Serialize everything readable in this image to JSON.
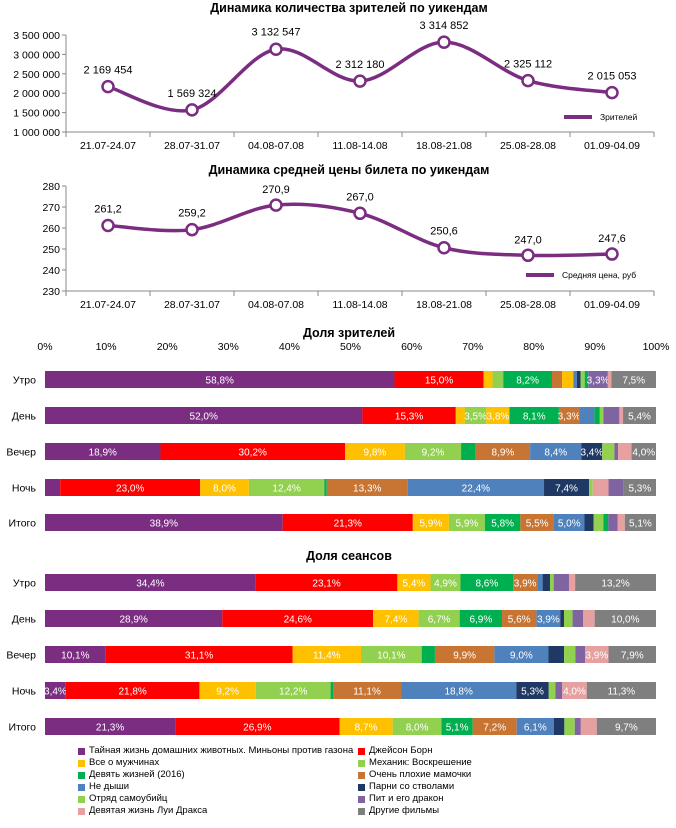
{
  "chart_data": [
    {
      "type": "line",
      "title": "Динамика количества зрителей по уикендам",
      "categories": [
        "21.07-24.07",
        "28.07-31.07",
        "04.08-07.08",
        "11.08-14.08",
        "18.08-21.08",
        "25.08-28.08",
        "01.09-04.09"
      ],
      "series": [
        {
          "name": "Зрителей",
          "values": [
            2169454,
            1569324,
            3132547,
            2312180,
            3314852,
            2325112,
            2015053
          ]
        }
      ],
      "value_labels": [
        "2 169 454",
        "1 569 324",
        "3 132 547",
        "2 312 180",
        "3 314 852",
        "2 325 112",
        "2 015 053"
      ],
      "yticks": [
        "3 500 000",
        "3 000 000",
        "2 500 000",
        "2 000 000",
        "1 500 000",
        "1 000 000"
      ],
      "ylim": [
        1000000,
        3500000
      ],
      "legend": "Зрителей",
      "color": "#7b2d81"
    },
    {
      "type": "line",
      "title": "Динамика средней цены билета по уикендам",
      "categories": [
        "21.07-24.07",
        "28.07-31.07",
        "04.08-07.08",
        "11.08-14.08",
        "18.08-21.08",
        "25.08-28.08",
        "01.09-04.09"
      ],
      "series": [
        {
          "name": "Средняя цена, руб",
          "values": [
            261.2,
            259.2,
            270.9,
            267.0,
            250.6,
            247.0,
            247.6
          ]
        }
      ],
      "value_labels": [
        "261,2",
        "259,2",
        "270,9",
        "267,0",
        "250,6",
        "247,0",
        "247,6"
      ],
      "yticks": [
        "280",
        "270",
        "260",
        "250",
        "240",
        "230"
      ],
      "ylim": [
        230,
        280
      ],
      "legend": "Средняя цена, руб",
      "color": "#7b2d81"
    },
    {
      "type": "bar",
      "orientation": "horizontal-stacked-100",
      "title": "Доля зрителей",
      "xticks": [
        "0%",
        "10%",
        "20%",
        "30%",
        "40%",
        "50%",
        "60%",
        "70%",
        "80%",
        "90%",
        "100%"
      ],
      "categories": [
        "Утро",
        "День",
        "Вечер",
        "Ночь",
        "Итого"
      ],
      "values": [
        [
          58.8,
          15.0,
          1.5,
          1.8,
          8.2,
          1.7,
          1.9,
          0.6,
          0.6,
          0.7,
          0.6,
          3.3,
          0.6,
          7.5
        ],
        [
          52.0,
          15.3,
          1.5,
          3.5,
          3.8,
          8.1,
          3.3,
          2.5,
          0.9,
          0.6,
          2.6,
          0.6,
          5.4
        ],
        [
          18.9,
          30.2,
          9.8,
          9.2,
          2.4,
          8.9,
          8.4,
          3.4,
          2.0,
          0.6,
          2.2,
          4.0
        ],
        [
          2.5,
          23.0,
          8.0,
          12.4,
          0.4,
          13.3,
          22.4,
          7.4,
          0.6,
          2.6,
          2.5,
          5.3
        ],
        [
          38.9,
          21.3,
          5.9,
          5.9,
          5.8,
          5.5,
          5.0,
          1.5,
          1.6,
          0.8,
          1.5,
          1.2,
          5.1
        ]
      ],
      "colors": [
        [
          "#7b2d81",
          "#ff0000",
          "#ffc000",
          "#92d050",
          "#00b050",
          "#c87533",
          "#ffc000",
          "#4f81bd",
          "#1f3864",
          "#92d050",
          "#00b050",
          "#8064a2",
          "#e6a0a0",
          "#7f7f7f"
        ],
        [
          "#7b2d81",
          "#ff0000",
          "#ffc000",
          "#92d050",
          "#ffc000",
          "#00b050",
          "#c87533",
          "#4f81bd",
          "#00b050",
          "#92d050",
          "#8064a2",
          "#e6a0a0",
          "#7f7f7f"
        ],
        [
          "#7b2d81",
          "#ff0000",
          "#ffc000",
          "#92d050",
          "#00b050",
          "#c87533",
          "#4f81bd",
          "#1f3864",
          "#92d050",
          "#8064a2",
          "#e6a0a0",
          "#7f7f7f"
        ],
        [
          "#7b2d81",
          "#ff0000",
          "#ffc000",
          "#92d050",
          "#00b050",
          "#c87533",
          "#4f81bd",
          "#1f3864",
          "#92d050",
          "#e6a0a0",
          "#8064a2",
          "#7f7f7f"
        ],
        [
          "#7b2d81",
          "#ff0000",
          "#ffc000",
          "#92d050",
          "#00b050",
          "#c87533",
          "#4f81bd",
          "#1f3864",
          "#92d050",
          "#00b050",
          "#8064a2",
          "#e6a0a0",
          "#7f7f7f"
        ]
      ],
      "labels": [
        [
          "58,8%",
          "15,0%",
          "",
          "",
          "8,2%",
          "",
          "",
          "",
          "",
          "",
          "",
          "3,3%",
          "",
          "7,5%"
        ],
        [
          "52,0%",
          "15,3%",
          "",
          "3,5%",
          "3,8%",
          "8,1%",
          "3,3%",
          "",
          "",
          "",
          "",
          "",
          "5,4%"
        ],
        [
          "18,9%",
          "30,2%",
          "9,8%",
          "9,2%",
          "",
          "8,9%",
          "8,4%",
          "3,4%",
          "",
          "",
          "",
          "4,0%"
        ],
        [
          "",
          "23,0%",
          "8,0%",
          "12,4%",
          "",
          "13,3%",
          "22,4%",
          "7,4%",
          "",
          "",
          "",
          "5,3%"
        ],
        [
          "38,9%",
          "21,3%",
          "5,9%",
          "5,9%",
          "5,8%",
          "5,5%",
          "5,0%",
          "",
          "",
          "",
          "",
          "",
          "5,1%"
        ]
      ]
    },
    {
      "type": "bar",
      "orientation": "horizontal-stacked-100",
      "title": "Доля сеансов",
      "categories": [
        "Утро",
        "День",
        "Вечер",
        "Ночь",
        "Итого"
      ],
      "values": [
        [
          34.4,
          23.1,
          5.4,
          4.9,
          8.6,
          3.9,
          0.9,
          1.2,
          0.6,
          2.5,
          1.0,
          13.2
        ],
        [
          28.9,
          24.6,
          7.4,
          6.7,
          6.9,
          5.6,
          3.9,
          0.6,
          1.4,
          1.7,
          1.9,
          10.0
        ],
        [
          10.1,
          31.1,
          11.4,
          10.1,
          2.2,
          9.9,
          9.0,
          2.6,
          1.9,
          1.6,
          3.9,
          7.9
        ],
        [
          3.4,
          21.8,
          9.2,
          12.2,
          0.4,
          11.1,
          18.8,
          5.3,
          1.1,
          1.1,
          4.0,
          11.3
        ],
        [
          21.3,
          26.9,
          8.7,
          8.0,
          5.1,
          7.2,
          6.1,
          1.7,
          1.7,
          1.0,
          2.6,
          9.7
        ]
      ],
      "colors": [
        [
          "#7b2d81",
          "#ff0000",
          "#ffc000",
          "#92d050",
          "#00b050",
          "#c87533",
          "#4f81bd",
          "#1f3864",
          "#92d050",
          "#8064a2",
          "#e6a0a0",
          "#7f7f7f"
        ],
        [
          "#7b2d81",
          "#ff0000",
          "#ffc000",
          "#92d050",
          "#00b050",
          "#c87533",
          "#4f81bd",
          "#1f3864",
          "#92d050",
          "#8064a2",
          "#e6a0a0",
          "#7f7f7f"
        ],
        [
          "#7b2d81",
          "#ff0000",
          "#ffc000",
          "#92d050",
          "#00b050",
          "#c87533",
          "#4f81bd",
          "#1f3864",
          "#92d050",
          "#8064a2",
          "#e6a0a0",
          "#7f7f7f"
        ],
        [
          "#7b2d81",
          "#ff0000",
          "#ffc000",
          "#92d050",
          "#00b050",
          "#c87533",
          "#4f81bd",
          "#1f3864",
          "#92d050",
          "#8064a2",
          "#e6a0a0",
          "#7f7f7f"
        ],
        [
          "#7b2d81",
          "#ff0000",
          "#ffc000",
          "#92d050",
          "#00b050",
          "#c87533",
          "#4f81bd",
          "#1f3864",
          "#92d050",
          "#8064a2",
          "#e6a0a0",
          "#7f7f7f"
        ]
      ],
      "labels": [
        [
          "34,4%",
          "23,1%",
          "5,4%",
          "4,9%",
          "8,6%",
          "3,9%",
          "",
          "",
          "",
          "",
          "",
          "13,2%"
        ],
        [
          "28,9%",
          "24,6%",
          "7,4%",
          "6,7%",
          "6,9%",
          "5,6%",
          "3,9%",
          "",
          "",
          "",
          "",
          "10,0%"
        ],
        [
          "10,1%",
          "31,1%",
          "11,4%",
          "10,1%",
          "",
          "9,9%",
          "9,0%",
          "",
          "",
          "",
          "3,9%",
          "7,9%"
        ],
        [
          "3,4%",
          "21,8%",
          "9,2%",
          "12,2%",
          "",
          "11,1%",
          "18,8%",
          "5,3%",
          "",
          "",
          "4,0%",
          "11,3%"
        ],
        [
          "21,3%",
          "26,9%",
          "8,7%",
          "8,0%",
          "5,1%",
          "7,2%",
          "6,1%",
          "",
          "",
          "",
          "",
          "9,7%"
        ]
      ]
    }
  ],
  "legend": [
    {
      "label": "Тайная жизнь домашних животных. Миньоны против газона",
      "color": "#7b2d81"
    },
    {
      "label": "Джейсон Борн",
      "color": "#ff0000"
    },
    {
      "label": "Все о мужчинах",
      "color": "#ffc000"
    },
    {
      "label": "Механик: Воскрешение",
      "color": "#92d050"
    },
    {
      "label": "Девять жизней (2016)",
      "color": "#00b050"
    },
    {
      "label": "Очень плохие мамочки",
      "color": "#c87533"
    },
    {
      "label": "Не дыши",
      "color": "#4f81bd"
    },
    {
      "label": "Парни со стволами",
      "color": "#1f3864"
    },
    {
      "label": "Отряд самоубийц",
      "color": "#92d050"
    },
    {
      "label": "Пит и его дракон",
      "color": "#8064a2"
    },
    {
      "label": "Девятая жизнь Луи Дракса",
      "color": "#e6a0a0"
    },
    {
      "label": "Другие фильмы",
      "color": "#7f7f7f"
    }
  ]
}
